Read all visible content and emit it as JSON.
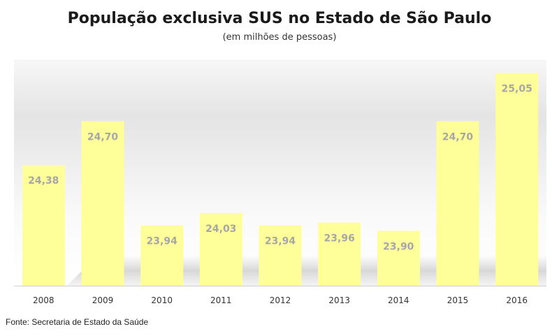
{
  "chart_data": {
    "type": "bar",
    "title": "População exclusiva SUS no Estado de São Paulo",
    "subtitle": "(em milhões  de pessoas)",
    "categories": [
      "2008",
      "2009",
      "2010",
      "2011",
      "2012",
      "2013",
      "2014",
      "2015",
      "2016"
    ],
    "values": [
      24.38,
      24.7,
      23.94,
      24.03,
      23.94,
      23.96,
      23.9,
      24.7,
      25.05
    ],
    "value_labels": [
      "24,38",
      "24,70",
      "23,94",
      "24,03",
      "23,94",
      "23,96",
      "23,90",
      "24,70",
      "25,05"
    ],
    "xlabel": "",
    "ylabel": "",
    "ylim": [
      23.5,
      25.15
    ],
    "grid": false,
    "legend": "none",
    "source": "Fonte: Secretaria de Estado da Saúde",
    "colors": {
      "bar": "#ffff99",
      "bar_label": "#a6a6a6",
      "background_top": "#f2f2f2",
      "background_bottom": "#ffffff"
    }
  }
}
